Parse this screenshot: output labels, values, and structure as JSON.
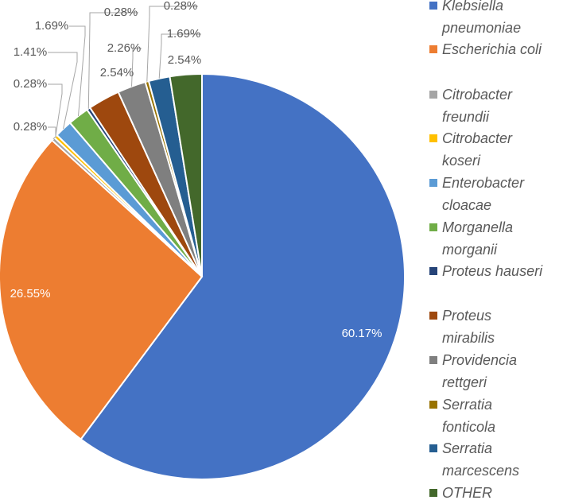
{
  "chart_data": {
    "type": "pie",
    "title": "",
    "start_angle_deg": 0,
    "direction": "clockwise",
    "legend_position": "right",
    "slices": [
      {
        "label": "Klebsiella pneumoniae",
        "value": 60.17,
        "display": "60.17%",
        "color": "#4472C4"
      },
      {
        "label": "Escherichia coli",
        "value": 26.55,
        "display": "26.55%",
        "color": "#ED7D31"
      },
      {
        "label": "Citrobacter freundii",
        "value": 0.28,
        "display": "0.28%",
        "color": "#A5A5A5"
      },
      {
        "label": "Citrobacter koseri",
        "value": 0.28,
        "display": "0.28%",
        "color": "#FFC000"
      },
      {
        "label": "Enterobacter cloacae",
        "value": 1.41,
        "display": "1.41%",
        "color": "#5B9BD5"
      },
      {
        "label": "Morganella morganii",
        "value": 1.69,
        "display": "1.69%",
        "color": "#70AD47"
      },
      {
        "label": "Proteus hauseri",
        "value": 0.28,
        "display": "0.28%",
        "color": "#264478"
      },
      {
        "label": "Proteus mirabilis",
        "value": 2.54,
        "display": "2.54%",
        "color": "#9E480E"
      },
      {
        "label": "Providencia rettgeri",
        "value": 2.26,
        "display": "2.26%",
        "color": "#7F7F7F"
      },
      {
        "label": "Serratia fonticola",
        "value": 0.28,
        "display": "0.28%",
        "color": "#997300"
      },
      {
        "label": "Serratia marcescens",
        "value": 1.69,
        "display": "1.69%",
        "color": "#255E91"
      },
      {
        "label": "OTHER",
        "value": 2.54,
        "display": "2.54%",
        "color": "#43682B"
      }
    ],
    "legend": [
      {
        "line1": "Klebsiella",
        "line2": "pneumoniae"
      },
      {
        "line1": "Escherichia coli",
        "line2": ""
      },
      {
        "line1": "Citrobacter",
        "line2": "freundii"
      },
      {
        "line1": "Citrobacter",
        "line2": "koseri"
      },
      {
        "line1": "Enterobacter",
        "line2": "cloacae"
      },
      {
        "line1": "Morganella",
        "line2": "morganii"
      },
      {
        "line1": "Proteus hauseri",
        "line2": ""
      },
      {
        "line1": "Proteus",
        "line2": "mirabilis"
      },
      {
        "line1": "Providencia",
        "line2": "rettgeri"
      },
      {
        "line1": "Serratia",
        "line2": "fonticola"
      },
      {
        "line1": "Serratia",
        "line2": "marcescens"
      },
      {
        "line1": "OTHER",
        "line2": ""
      }
    ]
  }
}
